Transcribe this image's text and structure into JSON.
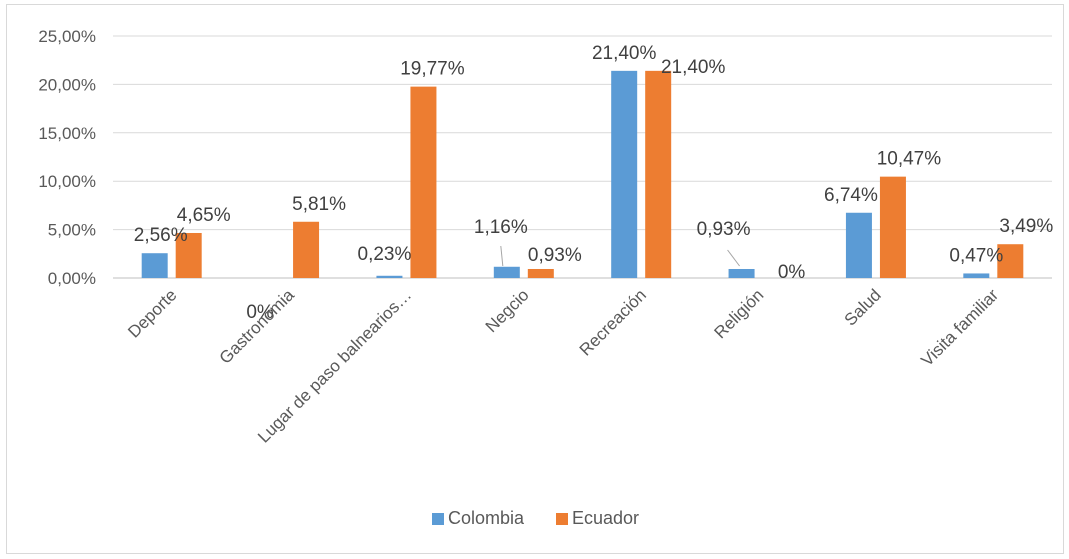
{
  "chart_data": {
    "type": "bar",
    "title": "",
    "xlabel": "",
    "ylabel": "",
    "categories": [
      "Deporte",
      "Gastronomia",
      "Lugar de paso balnearios…",
      "Negcio",
      "Recreación",
      "Religión",
      "Salud",
      "Visita familiar"
    ],
    "series": [
      {
        "name": "Colombia",
        "color": "#5b9bd5",
        "values": [
          2.56,
          0,
          0.23,
          1.16,
          21.4,
          0.93,
          6.74,
          0.47
        ],
        "labels": [
          "2,56%",
          "0%",
          "0,23%",
          "1,16%",
          "21,40%",
          "0,93%",
          "6,74%",
          "0,47%"
        ]
      },
      {
        "name": "Ecuador",
        "color": "#ed7d31",
        "values": [
          4.65,
          5.81,
          19.77,
          0.93,
          21.4,
          0,
          10.47,
          3.49
        ],
        "labels": [
          "4,65%",
          "5,81%",
          "19,77%",
          "0,93%",
          "21,40%",
          "0%",
          "10,47%",
          "3,49%"
        ]
      }
    ],
    "ylim": [
      0,
      25
    ],
    "yticks": [
      0,
      5,
      10,
      15,
      20,
      25
    ],
    "ytick_labels": [
      "0,00%",
      "5,00%",
      "10,00%",
      "15,00%",
      "20,00%",
      "25,00%"
    ],
    "grid": true,
    "legend_position": "bottom"
  }
}
